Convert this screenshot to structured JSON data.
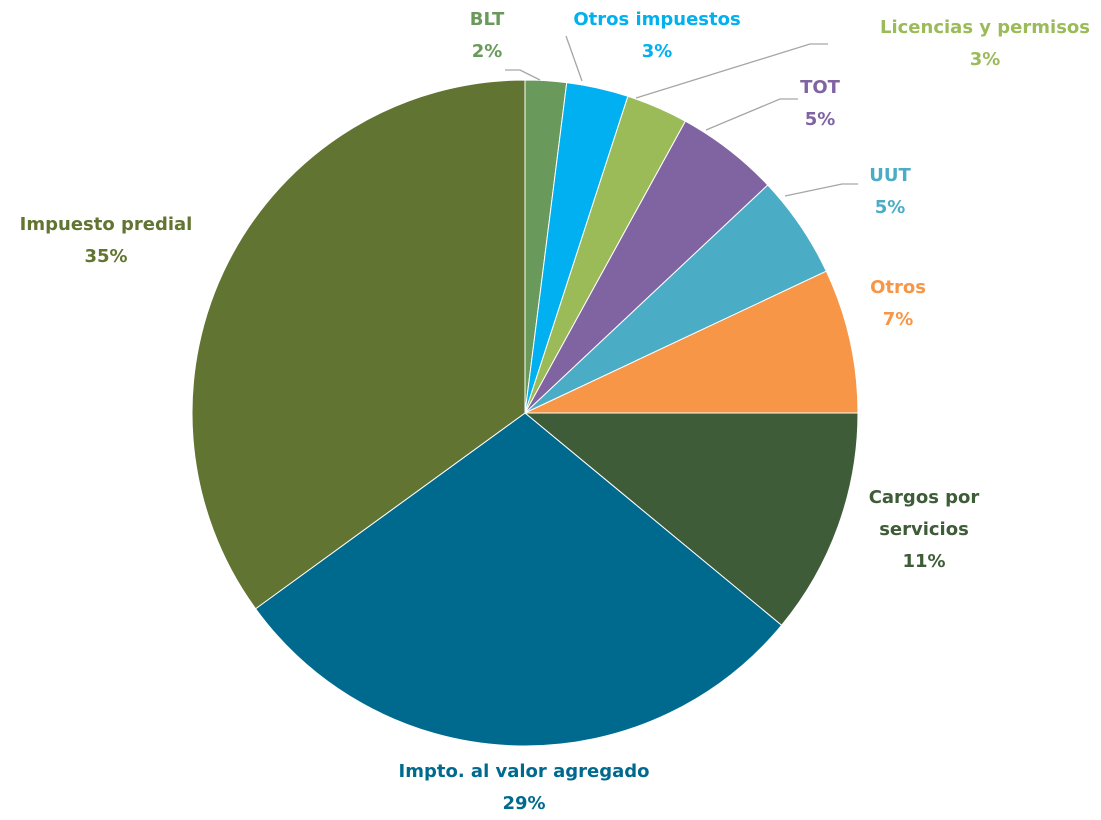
{
  "chart_data": {
    "type": "pie",
    "categories": [
      "BLT",
      "Otros impuestos",
      "Licencias y permisos",
      "TOT",
      "UUT",
      "Otros",
      "Cargos por servicios",
      "Impto. al valor agregado",
      "Impuesto predial"
    ],
    "values": [
      2,
      3,
      3,
      5,
      5,
      7,
      11,
      29,
      35
    ],
    "value_labels": [
      "2%",
      "3%",
      "3%",
      "5%",
      "5%",
      "7%",
      "11%",
      "29%",
      "35%"
    ],
    "colors": [
      "#6a9a5b",
      "#00b0f0",
      "#9bbb59",
      "#8064a2",
      "#4bacc6",
      "#f79646",
      "#3d5c37",
      "#006a8e",
      "#617431"
    ]
  }
}
